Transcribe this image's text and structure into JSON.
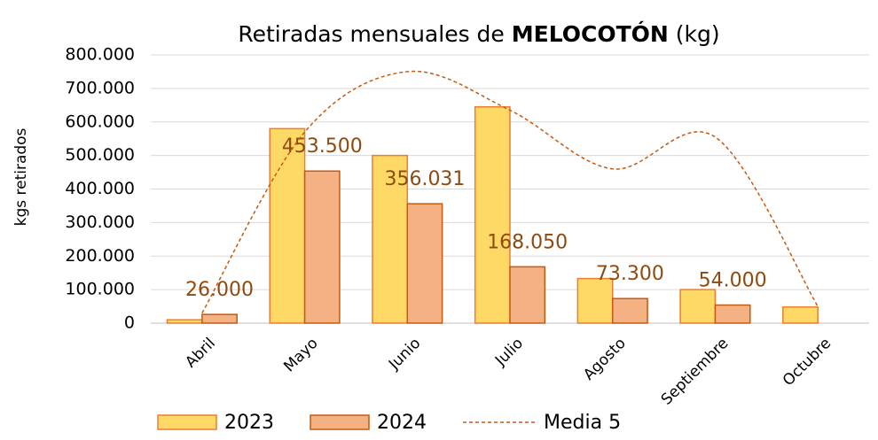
{
  "chart_data": {
    "type": "bar",
    "title": [
      "Retiradas mensuales de ",
      "MELOCOTÓN",
      " (kg)"
    ],
    "y_label": "kgs retirados",
    "categories": [
      "Abril",
      "Mayo",
      "Junio",
      "Julio",
      "Agosto",
      "Septiembre",
      "Octubre"
    ],
    "series": [
      {
        "name": "2023",
        "type": "bar",
        "color": "#ffd966",
        "edge": "#ed7d31",
        "values": [
          10000,
          580000,
          500000,
          645000,
          133000,
          100000,
          48000
        ]
      },
      {
        "name": "2024",
        "type": "bar",
        "color": "#f4b183",
        "edge": "#c55a11",
        "values": [
          26000,
          453500,
          356031,
          168050,
          73300,
          54000,
          null
        ],
        "value_labels": [
          "26.000",
          "453.500",
          "356.031",
          "168.050",
          "73.300",
          "54.000",
          null
        ]
      },
      {
        "name": "Media 5",
        "type": "line",
        "color": "#c55a11",
        "dashed": true,
        "values": [
          30000,
          570000,
          750000,
          635000,
          460000,
          555000,
          50000
        ]
      }
    ],
    "ylim": [
      0,
      800000
    ],
    "yticks": [
      0,
      {
        "value": 100000,
        "label": "100.000"
      },
      {
        "value": 200000,
        "label": "200.000"
      },
      {
        "value": 300000,
        "label": "300.000"
      },
      {
        "value": 400000,
        "label": "400.000"
      },
      {
        "value": 500000,
        "label": "500.000"
      },
      {
        "value": 600000,
        "label": "600.000"
      },
      {
        "value": 700000,
        "label": "700.000"
      },
      {
        "value": 800000,
        "label": "800.000"
      }
    ],
    "grid": true,
    "legend": "bottom"
  }
}
